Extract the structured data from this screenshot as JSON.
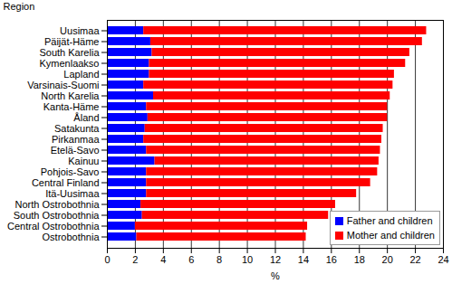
{
  "chart_data": {
    "type": "bar",
    "orientation": "horizontal",
    "stacked": true,
    "y_label": "Region",
    "x_label": "%",
    "categories": [
      "Uusimaa",
      "Päijät-Häme",
      "South Karelia",
      "Kymenlaakso",
      "Lapland",
      "Varsinais-Suomi",
      "North Karelia",
      "Kanta-Häme",
      "Åland",
      "Satakunta",
      "Pirkanmaa",
      "Etelä-Savo",
      "Kainuu",
      "Pohjois-Savo",
      "Central Finland",
      "Itä-Uusimaa",
      "North Ostrobothnia",
      "South Ostrobothnia",
      "Central Ostrobothnia",
      "Ostrobothnia"
    ],
    "series": [
      {
        "name": "Father and children",
        "color": "#0000ff",
        "values": [
          2.6,
          3.1,
          3.2,
          3.0,
          3.0,
          2.6,
          3.3,
          2.8,
          2.9,
          2.7,
          2.6,
          2.8,
          3.4,
          2.8,
          2.8,
          2.8,
          2.4,
          2.5,
          2.0,
          2.1
        ]
      },
      {
        "name": "Mother and children",
        "color": "#ff0000",
        "values": [
          20.2,
          19.4,
          18.4,
          18.3,
          17.5,
          17.8,
          16.9,
          17.2,
          17.1,
          17.0,
          17.0,
          16.7,
          16.0,
          16.5,
          16.0,
          15.0,
          13.9,
          13.3,
          12.3,
          12.1
        ]
      }
    ],
    "xlim": [
      0,
      24
    ],
    "xticks": [
      0,
      2,
      4,
      6,
      8,
      10,
      12,
      14,
      16,
      18,
      20,
      22,
      24
    ],
    "grid": true,
    "legend": "lower right"
  }
}
